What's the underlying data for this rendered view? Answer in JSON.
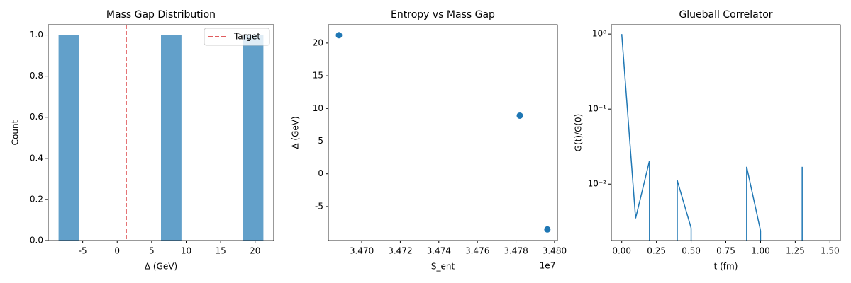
{
  "chart_data": [
    {
      "type": "histogram",
      "title": "Mass Gap Distribution",
      "xlabel": "Δ (GeV)",
      "ylabel": "Count",
      "bins": [
        -8.5,
        -5.53,
        -2.56,
        0.41,
        3.38,
        6.35,
        9.32,
        12.29,
        15.26,
        18.23,
        21.2
      ],
      "values": [
        1,
        0,
        0,
        0,
        0,
        1,
        0,
        0,
        0,
        1
      ],
      "color": "#1f77b4",
      "alpha": 0.7,
      "xlim": [
        -10,
        22.7
      ],
      "xticks": [
        -5,
        0,
        5,
        10,
        15,
        20
      ],
      "ylim": [
        0,
        1.05
      ],
      "yticks": [
        {
          "value": 0,
          "label": "0.0"
        },
        {
          "value": 0.2,
          "label": "0.2"
        },
        {
          "value": 0.4,
          "label": "0.4"
        },
        {
          "value": 0.6,
          "label": "0.6"
        },
        {
          "value": 0.8,
          "label": "0.8"
        },
        {
          "value": 1,
          "label": "1.0"
        }
      ],
      "vlines": [
        {
          "name": "Target",
          "x": 1.3,
          "color": "#d62728"
        }
      ],
      "legend": "upper right"
    },
    {
      "type": "scatter",
      "title": "Entropy vs Mass Gap",
      "xlabel": "S_ent",
      "ylabel": "Δ (GeV)",
      "offset_text": "1e7",
      "x": [
        3.46882,
        3.4782,
        3.47963
      ],
      "values": [
        21.2,
        8.9,
        -8.5
      ],
      "color": "#1f77b4",
      "xlim": [
        3.46827,
        3.48015
      ],
      "xticks": [
        {
          "value": 3.47,
          "label": "3.470"
        },
        {
          "value": 3.472,
          "label": "3.472"
        },
        {
          "value": 3.474,
          "label": "3.474"
        },
        {
          "value": 3.476,
          "label": "3.476"
        },
        {
          "value": 3.478,
          "label": "3.478"
        },
        {
          "value": 3.48,
          "label": "3.480"
        }
      ],
      "ylim": [
        -10.2,
        22.8
      ],
      "yticks": [
        -5,
        0,
        5,
        10,
        15,
        20
      ]
    },
    {
      "type": "line",
      "title": "Glueball Correlator",
      "xlabel": "t (fm)",
      "ylabel": "G(t)/G(0)",
      "yscale": "log",
      "x": [
        0,
        0.1,
        0.2,
        0.3,
        0.4,
        0.5,
        0.6,
        0.7,
        0.8,
        0.9,
        1.0,
        1.1,
        1.2,
        1.3,
        1.4,
        1.5
      ],
      "values": [
        1,
        0.0035,
        0.0205,
        null,
        0.0112,
        0.0026,
        null,
        null,
        null,
        0.017,
        0.0024,
        null,
        null,
        0.017,
        null,
        null
      ],
      "color": "#1f77b4",
      "xlim": [
        -0.075,
        1.575
      ],
      "xticks": [
        {
          "value": 0,
          "label": "0.00"
        },
        {
          "value": 0.25,
          "label": "0.25"
        },
        {
          "value": 0.5,
          "label": "0.50"
        },
        {
          "value": 0.75,
          "label": "0.75"
        },
        {
          "value": 1,
          "label": "1.00"
        },
        {
          "value": 1.25,
          "label": "1.25"
        },
        {
          "value": 1.5,
          "label": "1.50"
        }
      ],
      "ylim": [
        0.00177,
        1.33
      ],
      "yticks": [
        {
          "value": 1,
          "label": "10⁰"
        },
        {
          "value": 0.1,
          "label": "10⁻¹"
        },
        {
          "value": 0.01,
          "label": "10⁻²"
        }
      ]
    }
  ]
}
